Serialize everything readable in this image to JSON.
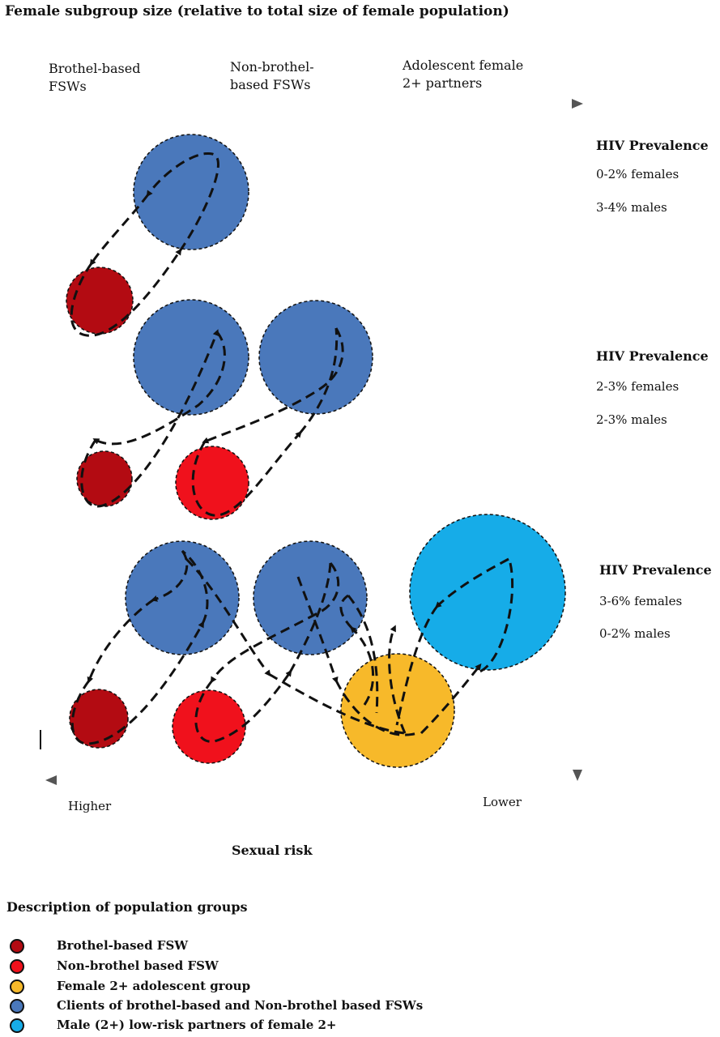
{
  "title": "Female subgroup size (relative to total size of female population)",
  "columns": [
    "Brothel-based\nFSWs",
    "Non-brothel-\nbased FSWs",
    "Adolescent female\n2+ partners"
  ],
  "prevalence": [
    {
      "heading": "HIV Prevalence",
      "females": "0-2% females",
      "males": "3-4% males"
    },
    {
      "heading": "HIV Prevalence",
      "females": "2-3% females",
      "males": "2-3% males"
    },
    {
      "heading": "HIV Prevalence",
      "females": "3-6% females",
      "males": "0-2% males"
    }
  ],
  "axis": {
    "higher": "Higher",
    "lower": "Lower",
    "label": "Sexual risk"
  },
  "legend": {
    "title": "Description of population groups",
    "items": [
      {
        "label": "Brothel-based FSW",
        "color": "#b30b12"
      },
      {
        "label": "Non-brothel based FSW",
        "color": "#f0111c"
      },
      {
        "label": "Female 2+ adolescent group",
        "color": "#f7b92a"
      },
      {
        "label": "Clients of brothel-based and Non-brothel based FSWs",
        "color": "#4a78bb"
      },
      {
        "label": "Male (2+) low-risk partners of female 2+",
        "color": "#16ace8"
      }
    ]
  },
  "colors": {
    "brothel": "#b30b12",
    "nonbrothel": "#f0111c",
    "adolescent": "#f7b92a",
    "clients": "#4a78bb",
    "male_lowrisk": "#16ace8",
    "axis": "#555555"
  }
}
